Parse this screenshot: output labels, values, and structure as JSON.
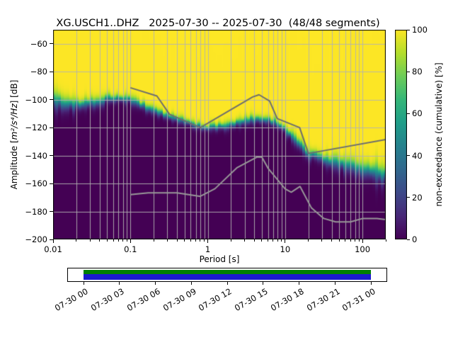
{
  "chart_data": {
    "type": "heatmap",
    "title": "XG.USCH1..DHZ   2025-07-30 -- 2025-07-30  (48/48 segments)",
    "xlabel": "Period [s]",
    "ylabel_pre": "Amplitude [",
    "ylabel_math": "m²/s⁴/Hz",
    "ylabel_post": "] [dB]",
    "xscale": "log",
    "xlim": [
      0.01,
      200
    ],
    "ylim": [
      -200,
      -50
    ],
    "x_ticks": [
      0.01,
      0.1,
      1,
      10,
      100
    ],
    "x_tick_labels": [
      "0.01",
      "0.1",
      "1",
      "10",
      "100"
    ],
    "y_ticks": [
      -60,
      -80,
      -100,
      -120,
      -140,
      -160,
      -180,
      -200
    ],
    "y_tick_labels": [
      "−60",
      "−80",
      "−100",
      "−120",
      "−140",
      "−160",
      "−180",
      "−200"
    ],
    "grid": true,
    "colormap": "viridis",
    "colorbar": {
      "label": "non-exceedance (cumulative) [%]",
      "ticks": [
        0,
        20,
        40,
        60,
        80,
        100
      ],
      "tick_labels": [
        "0",
        "20",
        "40",
        "60",
        "80",
        "100"
      ]
    },
    "cumulative_boundary": {
      "description": "PSD cumulative distribution edge: 100% (yellow) above, 0% (dark purple) below",
      "periods_s": [
        0.01,
        0.013,
        0.018,
        0.025,
        0.035,
        0.05,
        0.07,
        0.09,
        0.12,
        0.16,
        0.22,
        0.3,
        0.45,
        0.65,
        0.9,
        1.3,
        1.8,
        2.5,
        3.5,
        5,
        7,
        9,
        12,
        16,
        20,
        28,
        40,
        60,
        90,
        130,
        200
      ],
      "db": [
        -100.5,
        -102,
        -103.5,
        -103.5,
        -101.5,
        -99.5,
        -98.5,
        -99.5,
        -102,
        -105.5,
        -108.5,
        -111.5,
        -115,
        -118,
        -119.5,
        -119.5,
        -118,
        -116,
        -114.5,
        -114,
        -115.5,
        -119,
        -126,
        -133,
        -138.5,
        -141.5,
        -144,
        -146.5,
        -149,
        -151.5,
        -154
      ],
      "spread_db": [
        3.0,
        2.6,
        2.2,
        1.8,
        1.6,
        1.6,
        1.6,
        1.5,
        1.4,
        1.3,
        1.3,
        1.3,
        1.3,
        1.3,
        1.3,
        1.3,
        1.3,
        1.4,
        1.5,
        1.5,
        1.5,
        1.5,
        1.6,
        1.7,
        1.9,
        2.1,
        2.4,
        2.7,
        3.0,
        3.3,
        3.6
      ]
    },
    "noise_models": {
      "high_noise_model": {
        "color": "#6e6e6e",
        "periods_s": [
          0.1,
          0.22,
          0.32,
          0.8,
          3.8,
          4.6,
          6.3,
          7.9,
          15.4,
          20,
          200
        ],
        "db": [
          -91.5,
          -97.4,
          -110.5,
          -120,
          -98.1,
          -96.5,
          -101,
          -113.5,
          -120,
          -138.5,
          -128.5
        ]
      },
      "low_noise_model": {
        "color": "#989898",
        "periods_s": [
          0.1,
          0.17,
          0.4,
          0.8,
          1.24,
          2.4,
          4.3,
          5,
          6,
          10,
          12,
          15.6,
          21.9,
          31.6,
          45,
          70,
          101,
          154,
          200
        ],
        "db": [
          -168,
          -166.7,
          -166.7,
          -169.2,
          -163.7,
          -148.6,
          -141.1,
          -141.1,
          -149,
          -163.8,
          -166.2,
          -162.1,
          -177.5,
          -185,
          -187.5,
          -187.5,
          -185,
          -185,
          -185.8
        ]
      }
    },
    "timeline": {
      "tick_labels": [
        "07-30 00",
        "07-30 03",
        "07-30 06",
        "07-30 09",
        "07-30 12",
        "07-30 15",
        "07-30 18",
        "07-30 21",
        "07-31 00"
      ],
      "segments_color": "#008000",
      "data_color": "#1a1acd"
    }
  }
}
